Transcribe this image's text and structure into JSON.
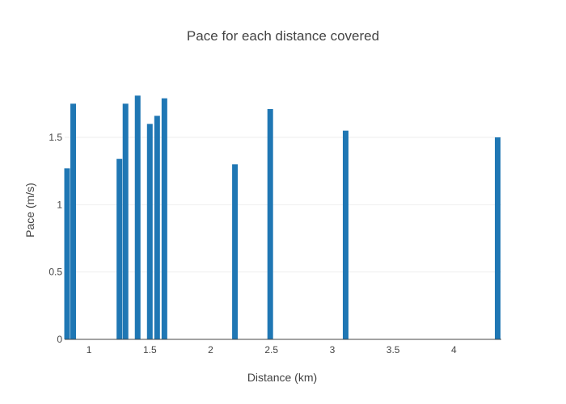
{
  "chart_data": {
    "type": "bar",
    "title": "Pace for each distance covered",
    "xlabel": "Distance (km)",
    "ylabel": "Pace (m/s)",
    "xlim": [
      0.8,
      4.39
    ],
    "ylim": [
      0,
      1.92
    ],
    "x_ticks": [
      1,
      1.5,
      2,
      2.5,
      3,
      3.5,
      4
    ],
    "x_tick_labels": [
      "1",
      "1.5",
      "2",
      "2.5",
      "3",
      "3.5",
      "4"
    ],
    "y_ticks": [
      0,
      0.5,
      1,
      1.5
    ],
    "y_tick_labels": [
      "0",
      "0.5",
      "1",
      "1.5"
    ],
    "grid": true,
    "bar_color": "#1f77b4",
    "grid_color": "#eeeeee",
    "points": [
      {
        "x": 0.82,
        "y": 1.27
      },
      {
        "x": 0.87,
        "y": 1.75
      },
      {
        "x": 1.25,
        "y": 1.34
      },
      {
        "x": 1.3,
        "y": 1.75
      },
      {
        "x": 1.4,
        "y": 1.81
      },
      {
        "x": 1.5,
        "y": 1.6
      },
      {
        "x": 1.56,
        "y": 1.66
      },
      {
        "x": 1.62,
        "y": 1.79
      },
      {
        "x": 2.2,
        "y": 1.3
      },
      {
        "x": 2.49,
        "y": 1.71
      },
      {
        "x": 3.11,
        "y": 1.55
      },
      {
        "x": 4.36,
        "y": 1.5
      }
    ]
  }
}
